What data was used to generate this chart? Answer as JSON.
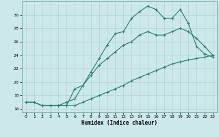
{
  "xlabel": "Humidex (Indice chaleur)",
  "bg_color": "#cce8ea",
  "grid_color": "#b8d8da",
  "line_color": "#2e7d6e",
  "xlim": [
    -0.5,
    23.5
  ],
  "ylim": [
    15.5,
    32.0
  ],
  "xticks": [
    0,
    1,
    2,
    3,
    4,
    5,
    6,
    7,
    8,
    9,
    10,
    11,
    12,
    13,
    14,
    15,
    16,
    17,
    18,
    19,
    20,
    21,
    22,
    23
  ],
  "yticks": [
    16,
    18,
    20,
    22,
    24,
    26,
    28,
    30
  ],
  "curve1_x": [
    0,
    1,
    2,
    3,
    4,
    5,
    6,
    7,
    8,
    9,
    10,
    11,
    12,
    13,
    14,
    15,
    16,
    17,
    18,
    19,
    20,
    21,
    22,
    23
  ],
  "curve1_y": [
    17.0,
    17.0,
    16.5,
    16.5,
    16.5,
    17.0,
    17.5,
    19.5,
    21.5,
    23.5,
    25.5,
    27.2,
    27.5,
    29.5,
    30.5,
    31.3,
    30.8,
    29.5,
    29.5,
    30.8,
    28.7,
    25.3,
    24.2,
    23.7
  ],
  "curve2_x": [
    2,
    3,
    4,
    5,
    6,
    7,
    8,
    9,
    10,
    11,
    12,
    13,
    14,
    15,
    16,
    17,
    18,
    19,
    20,
    21,
    22,
    23
  ],
  "curve2_y": [
    16.5,
    16.5,
    16.5,
    16.5,
    19.0,
    19.5,
    21.0,
    22.5,
    23.5,
    24.5,
    25.5,
    26.0,
    27.0,
    27.5,
    27.0,
    27.0,
    27.5,
    28.0,
    27.5,
    26.5,
    25.3,
    24.0
  ],
  "curve3_x": [
    0,
    1,
    2,
    3,
    4,
    5,
    6,
    7,
    8,
    9,
    10,
    11,
    12,
    13,
    14,
    15,
    16,
    17,
    18,
    19,
    20,
    21,
    22,
    23
  ],
  "curve3_y": [
    17.0,
    17.0,
    16.5,
    16.5,
    16.5,
    16.5,
    16.5,
    17.0,
    17.5,
    18.0,
    18.5,
    19.0,
    19.5,
    20.2,
    20.7,
    21.2,
    21.7,
    22.2,
    22.7,
    23.0,
    23.3,
    23.5,
    23.7,
    24.0
  ]
}
